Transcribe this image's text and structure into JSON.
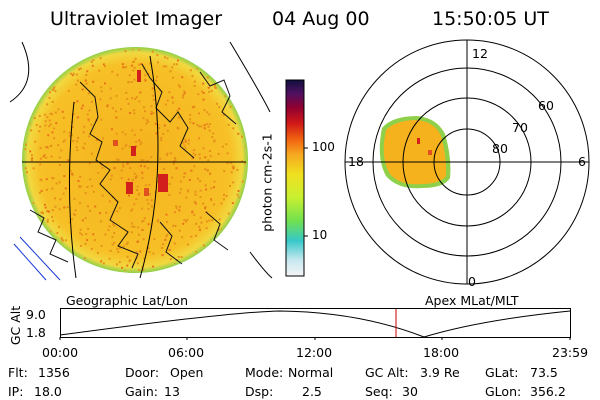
{
  "header": {
    "title": "Ultraviolet Imager",
    "date": "04 Aug 00",
    "time": "15:50:05 UT"
  },
  "colorbar": {
    "unit_label": "photon cm-2s-1",
    "ticks": [
      "100",
      "10"
    ]
  },
  "polar_plot": {
    "mlt_labels": [
      "12",
      "18",
      "6",
      "0"
    ],
    "mlat_labels": [
      "60",
      "70",
      "80"
    ]
  },
  "captions": {
    "left": "Geographic Lat/Lon",
    "right": "Apex MLat/MLT"
  },
  "altitude_plot": {
    "ylabel": "GC Alt",
    "yticks": [
      "9.0",
      "1.8"
    ],
    "xticks": [
      "00:00",
      "06:00",
      "12:00",
      "18:00",
      "23:59"
    ],
    "current_time_marker": "15:50"
  },
  "info": {
    "flt_label": "Flt:",
    "flt_value": "1356",
    "ip_label": "IP:",
    "ip_value": "18.0",
    "door_label": "Door:",
    "door_value": "Open",
    "gain_label": "Gain:",
    "gain_value": "13",
    "mode_label": "Mode:",
    "mode_value": "Normal",
    "dsp_label": "Dsp:",
    "dsp_value": "2.5",
    "gcalt_label": "GC Alt:",
    "gcalt_value": "3.9 Re",
    "seq_label": "Seq:",
    "seq_value": "30",
    "glat_label": "GLat:",
    "glat_value": "73.5",
    "glon_label": "GLon:",
    "glon_value": "356.2"
  },
  "colors": {
    "image_base": "#f7b31c",
    "image_speckle": "#e6921a",
    "hot": "#d2201c",
    "edge_green": "#8fd04a",
    "marker": "#cc0000"
  }
}
